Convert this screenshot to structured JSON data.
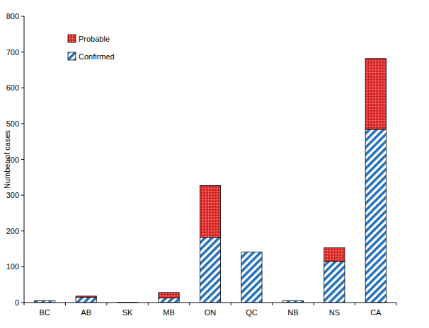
{
  "chart_data": {
    "type": "bar",
    "stacked": true,
    "legend": "top-left",
    "grid": false,
    "y_label": "Number of cases",
    "categories": [
      "BC",
      "AB",
      "SK",
      "MB",
      "ON",
      "QC",
      "NB",
      "NS",
      "CA"
    ],
    "series": [
      {
        "name": "Confirmed",
        "color": "#1f6fb8",
        "values": [
          5,
          15,
          1,
          13,
          182,
          141,
          5,
          115,
          484
        ]
      },
      {
        "name": "Probable",
        "color": "#e3312f",
        "values": [
          0,
          3,
          0,
          15,
          145,
          0,
          0,
          38,
          198
        ]
      }
    ],
    "ylim": [
      0,
      800
    ],
    "yticks": [
      0,
      100,
      200,
      300,
      400,
      500,
      600,
      700,
      800
    ]
  }
}
